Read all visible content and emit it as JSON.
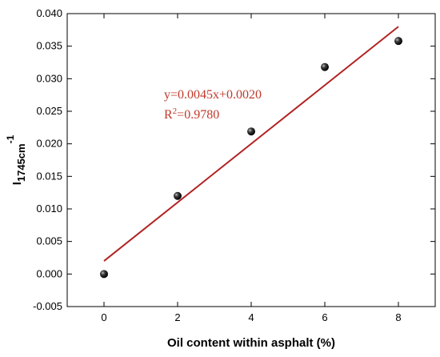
{
  "chart_data": {
    "type": "scatter",
    "title": "",
    "xlabel": "Oil content within asphalt (%)",
    "ylabel": {
      "main": "I",
      "sub": "1745cm",
      "sup": "-1"
    },
    "xlim": [
      -1,
      9
    ],
    "ylim": [
      -0.005,
      0.04
    ],
    "x_ticks": [
      0,
      2,
      4,
      6,
      8
    ],
    "y_ticks": [
      -0.005,
      0.0,
      0.005,
      0.01,
      0.015,
      0.02,
      0.025,
      0.03,
      0.035,
      0.04
    ],
    "x_tick_labels": [
      "0",
      "2",
      "4",
      "6",
      "8"
    ],
    "y_tick_labels": [
      "-0.005",
      "0.000",
      "0.005",
      "0.010",
      "0.015",
      "0.020",
      "0.025",
      "0.030",
      "0.035",
      "0.040"
    ],
    "grid": false,
    "points": [
      {
        "x": 0,
        "y": 0.0
      },
      {
        "x": 2,
        "y": 0.012
      },
      {
        "x": 4,
        "y": 0.0219
      },
      {
        "x": 6,
        "y": 0.0318
      },
      {
        "x": 8,
        "y": 0.0358
      }
    ],
    "fit_line": {
      "slope": 0.0045,
      "intercept": 0.002,
      "x_range": [
        0,
        8
      ],
      "color": "#b22222"
    },
    "annotations": {
      "equation": "y=0.0045x+0.0020",
      "r2_base": "R",
      "r2_sup": "2",
      "r2_value": "=0.9780",
      "color": "#c0392b"
    }
  }
}
